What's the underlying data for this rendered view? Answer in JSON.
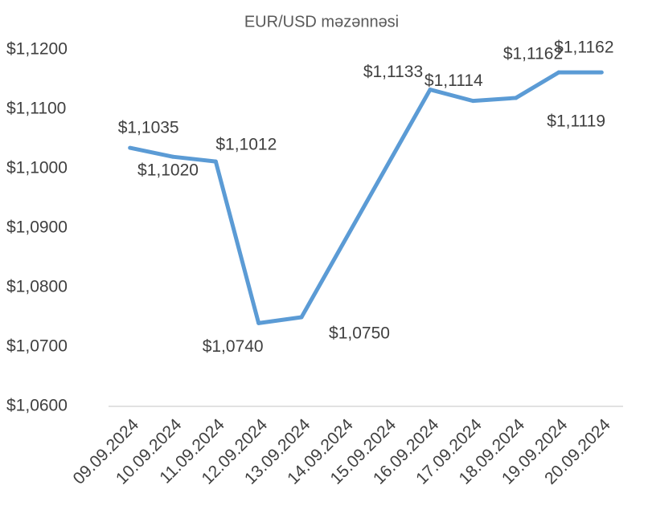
{
  "chart_data": {
    "type": "line",
    "title": "EUR/USD məzənnəsi",
    "categories": [
      "09.09.2024",
      "10.09.2024",
      "11.09.2024",
      "12.09.2024",
      "13.09.2024",
      "14.09.2024",
      "15.09.2024",
      "16.09.2024",
      "17.09.2024",
      "18.09.2024",
      "19.09.2024",
      "20.09.2024"
    ],
    "series": [
      {
        "name": "EUR/USD",
        "color": "#5b9bd5",
        "values": [
          1.1035,
          1.102,
          1.1012,
          1.074,
          1.075,
          null,
          null,
          1.1133,
          1.1114,
          1.1119,
          1.1162,
          1.1162
        ],
        "value_labels": [
          "$1,1035",
          "$1,1020",
          "$1,1012",
          "$1,0740",
          "$1,0750",
          null,
          null,
          "$1,1133",
          "$1,1114",
          "$1,1119",
          "$1,1162",
          "$1,1162"
        ]
      }
    ],
    "connect_gaps": true,
    "ylim": [
      1.06,
      1.12
    ],
    "yticks": [
      {
        "value": 1.06,
        "label": "$1,0600"
      },
      {
        "value": 1.07,
        "label": "$1,0700"
      },
      {
        "value": 1.08,
        "label": "$1,0800"
      },
      {
        "value": 1.09,
        "label": "$1,0900"
      },
      {
        "value": 1.1,
        "label": "$1,1000"
      },
      {
        "value": 1.11,
        "label": "$1,1100"
      },
      {
        "value": 1.12,
        "label": "$1,1200"
      }
    ],
    "grid": false
  }
}
